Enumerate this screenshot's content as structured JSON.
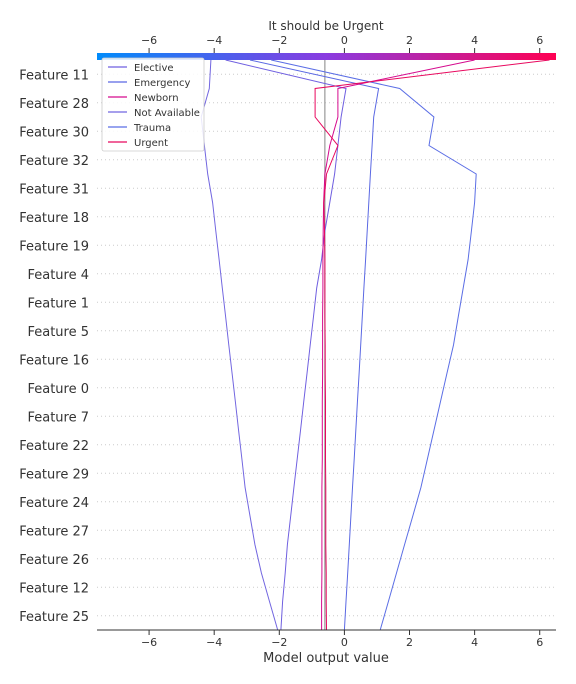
{
  "chart_data": {
    "type": "line",
    "subtype": "shap-decision-plot",
    "title": "It should be Urgent",
    "xlabel": "Model output value",
    "ylabel": "",
    "xlim": [
      -7.6,
      6.5
    ],
    "xticks": [
      -6,
      -4,
      -2,
      0,
      2,
      4,
      6
    ],
    "xtick_labels": [
      "−6",
      "−4",
      "−2",
      "0",
      "2",
      "4",
      "6"
    ],
    "base_value": -0.6,
    "colorbar": {
      "colors": [
        "#008bfb",
        "#ff0052"
      ],
      "position": "top"
    },
    "features": [
      "Feature 25",
      "Feature 12",
      "Feature 26",
      "Feature 27",
      "Feature 24",
      "Feature 29",
      "Feature 22",
      "Feature 7",
      "Feature 0",
      "Feature 16",
      "Feature 5",
      "Feature 1",
      "Feature 4",
      "Feature 19",
      "Feature 18",
      "Feature 31",
      "Feature 32",
      "Feature 30",
      "Feature 28",
      "Feature 11"
    ],
    "legend_position": "top-left",
    "series": [
      {
        "name": "Elective",
        "color": "#6f5fe0",
        "values": [
          -1.95,
          -1.9,
          -1.82,
          -1.75,
          -1.65,
          -1.55,
          -1.45,
          -1.35,
          -1.25,
          -1.15,
          -1.05,
          -0.95,
          -0.85,
          -0.7,
          -0.6,
          -0.45,
          -0.3,
          -0.2,
          -0.1,
          0.05,
          -3.65
        ]
      },
      {
        "name": "Emergency",
        "color": "#5a68e3",
        "values": [
          0.0,
          0.05,
          0.1,
          0.15,
          0.2,
          0.25,
          0.3,
          0.35,
          0.4,
          0.45,
          0.5,
          0.55,
          0.6,
          0.65,
          0.7,
          0.75,
          0.8,
          0.85,
          0.9,
          1.05,
          -2.9
        ]
      },
      {
        "name": "Newborn",
        "color": "#d50a8e",
        "values": [
          -0.7,
          -0.7,
          -0.69,
          -0.69,
          -0.69,
          -0.69,
          -0.68,
          -0.68,
          -0.68,
          -0.67,
          -0.67,
          -0.67,
          -0.66,
          -0.66,
          -0.65,
          -0.64,
          -0.6,
          -0.45,
          -0.2,
          -0.2,
          4.0
        ]
      },
      {
        "name": "Not Available",
        "color": "#7266e0",
        "values": [
          -2.05,
          -2.3,
          -2.55,
          -2.75,
          -2.9,
          -3.05,
          -3.15,
          -3.25,
          -3.35,
          -3.45,
          -3.55,
          -3.65,
          -3.75,
          -3.85,
          -3.95,
          -4.05,
          -4.2,
          -4.3,
          -4.4,
          -4.15,
          -4.1
        ]
      },
      {
        "name": "Trauma",
        "color": "#5b6ee5",
        "values": [
          1.1,
          1.35,
          1.6,
          1.85,
          2.1,
          2.35,
          2.55,
          2.75,
          2.95,
          3.15,
          3.35,
          3.5,
          3.65,
          3.8,
          3.9,
          4.0,
          4.05,
          2.6,
          2.75,
          1.7,
          -2.25
        ]
      },
      {
        "name": "Urgent",
        "color": "#e8085e",
        "values": [
          -0.55,
          -0.56,
          -0.56,
          -0.57,
          -0.57,
          -0.57,
          -0.58,
          -0.58,
          -0.58,
          -0.59,
          -0.59,
          -0.6,
          -0.6,
          -0.6,
          -0.61,
          -0.63,
          -0.55,
          -0.2,
          -0.9,
          -0.9,
          6.3
        ]
      }
    ]
  }
}
